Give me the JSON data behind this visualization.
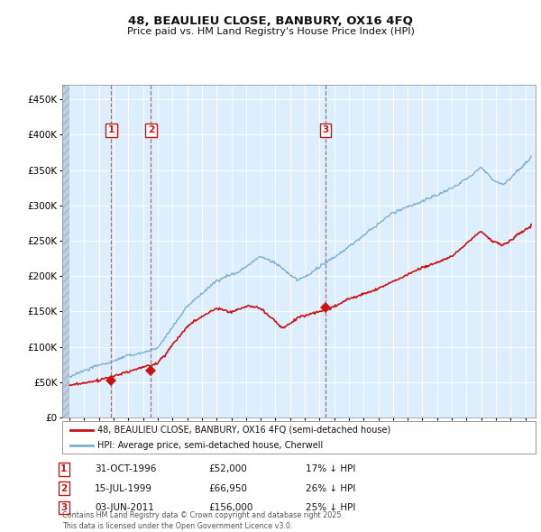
{
  "title": "48, BEAULIEU CLOSE, BANBURY, OX16 4FQ",
  "subtitle": "Price paid vs. HM Land Registry's House Price Index (HPI)",
  "background_color": "#ffffff",
  "plot_bg_color": "#ddeeff",
  "grid_color": "#ffffff",
  "hpi_color": "#7aafd4",
  "price_color": "#cc1111",
  "hatch_color": "#c8d8e8",
  "sales": [
    {
      "label": "1",
      "date_num": 1996.83,
      "price": 52000
    },
    {
      "label": "2",
      "date_num": 1999.54,
      "price": 66950
    },
    {
      "label": "3",
      "date_num": 2011.42,
      "price": 156000
    }
  ],
  "sale_labels_info": [
    {
      "num": "1",
      "date": "31-OCT-1996",
      "price": "£52,000",
      "pct": "17% ↓ HPI"
    },
    {
      "num": "2",
      "date": "15-JUL-1999",
      "price": "£66,950",
      "pct": "26% ↓ HPI"
    },
    {
      "num": "3",
      "date": "03-JUN-2011",
      "price": "£156,000",
      "pct": "25% ↓ HPI"
    }
  ],
  "legend_line1": "48, BEAULIEU CLOSE, BANBURY, OX16 4FQ (semi-detached house)",
  "legend_line2": "HPI: Average price, semi-detached house, Cherwell",
  "footer": "Contains HM Land Registry data © Crown copyright and database right 2025.\nThis data is licensed under the Open Government Licence v3.0.",
  "ylim": [
    0,
    470000
  ],
  "xlim_start": 1993.5,
  "xlim_end": 2025.7
}
